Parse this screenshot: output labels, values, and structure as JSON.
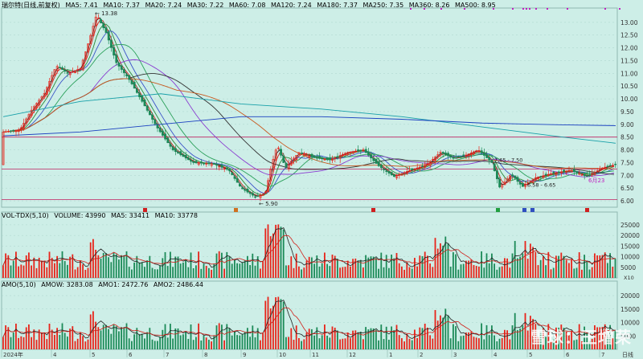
{
  "main_legend": {
    "title": "瑞尔特(日线,前复权)",
    "items": [
      {
        "label": "MA5: 7.41",
        "color": "#222222"
      },
      {
        "label": "MA10: 7.37",
        "color": "#d0201a"
      },
      {
        "label": "MA20: 7.24",
        "color": "#2b8a3a"
      },
      {
        "label": "MA30: 7.22",
        "color": "#3a52c8"
      },
      {
        "label": "MA60: 7.08",
        "color": "#2aa05a"
      },
      {
        "label": "MA120: 7.24",
        "color": "#8a3cd0"
      },
      {
        "label": "MA180: 7.37",
        "color": "#333333"
      },
      {
        "label": "MA250: 7.35",
        "color": "#c85a20"
      },
      {
        "label": "MA360: 8.26",
        "color": "#18a0a8"
      },
      {
        "label": "MA500: 8.95",
        "color": "#1a40c0"
      }
    ]
  },
  "vol_legend": {
    "items": [
      {
        "label": "VOL-TDX(5,10)",
        "color": "#222222"
      },
      {
        "label": "VOLUME: 43990",
        "color": "#222222"
      },
      {
        "label": "MA5: 33411",
        "color": "#222222"
      },
      {
        "label": "MA10: 33778",
        "color": "#d0201a"
      }
    ]
  },
  "amo_legend": {
    "items": [
      {
        "label": "AMO(5,10)",
        "color": "#222222"
      },
      {
        "label": "AMOW: 3283.08",
        "color": "#222222"
      },
      {
        "label": "AMO1: 2472.76",
        "color": "#222222"
      },
      {
        "label": "AMO2: 2486.44",
        "color": "#d0201a"
      }
    ]
  },
  "price_ticks": [
    "13.00",
    "12.50",
    "12.00",
    "11.50",
    "11.00",
    "10.50",
    "10.00",
    "9.50",
    "9.00",
    "8.50",
    "8.00",
    "7.50",
    "7.00",
    "6.50",
    "6.00"
  ],
  "vol_ticks": [
    "25000",
    "20000",
    "15000",
    "10000",
    "5000"
  ],
  "vol_unit": "X10",
  "amo_ticks": [
    "20000",
    "15000",
    "10000",
    "5000"
  ],
  "annotations": {
    "high": "13.38",
    "low": "5.90",
    "mid_range": "7.65 - 7.50",
    "low_range": "6.58 - 6.65",
    "date_tag": "6月23"
  },
  "x_labels": [
    "2024年",
    "4",
    "5",
    "6",
    "7",
    "8",
    "9",
    "10",
    "11",
    "12",
    "1",
    "2",
    "3",
    "4",
    "5",
    "6",
    "7"
  ],
  "x_end_label": "日线",
  "watermark": "雪球：王增荣",
  "colors": {
    "background": "#cdeee7",
    "up": "#e8241a",
    "down": "#1c8a58",
    "grid": "#aad4cb"
  }
}
